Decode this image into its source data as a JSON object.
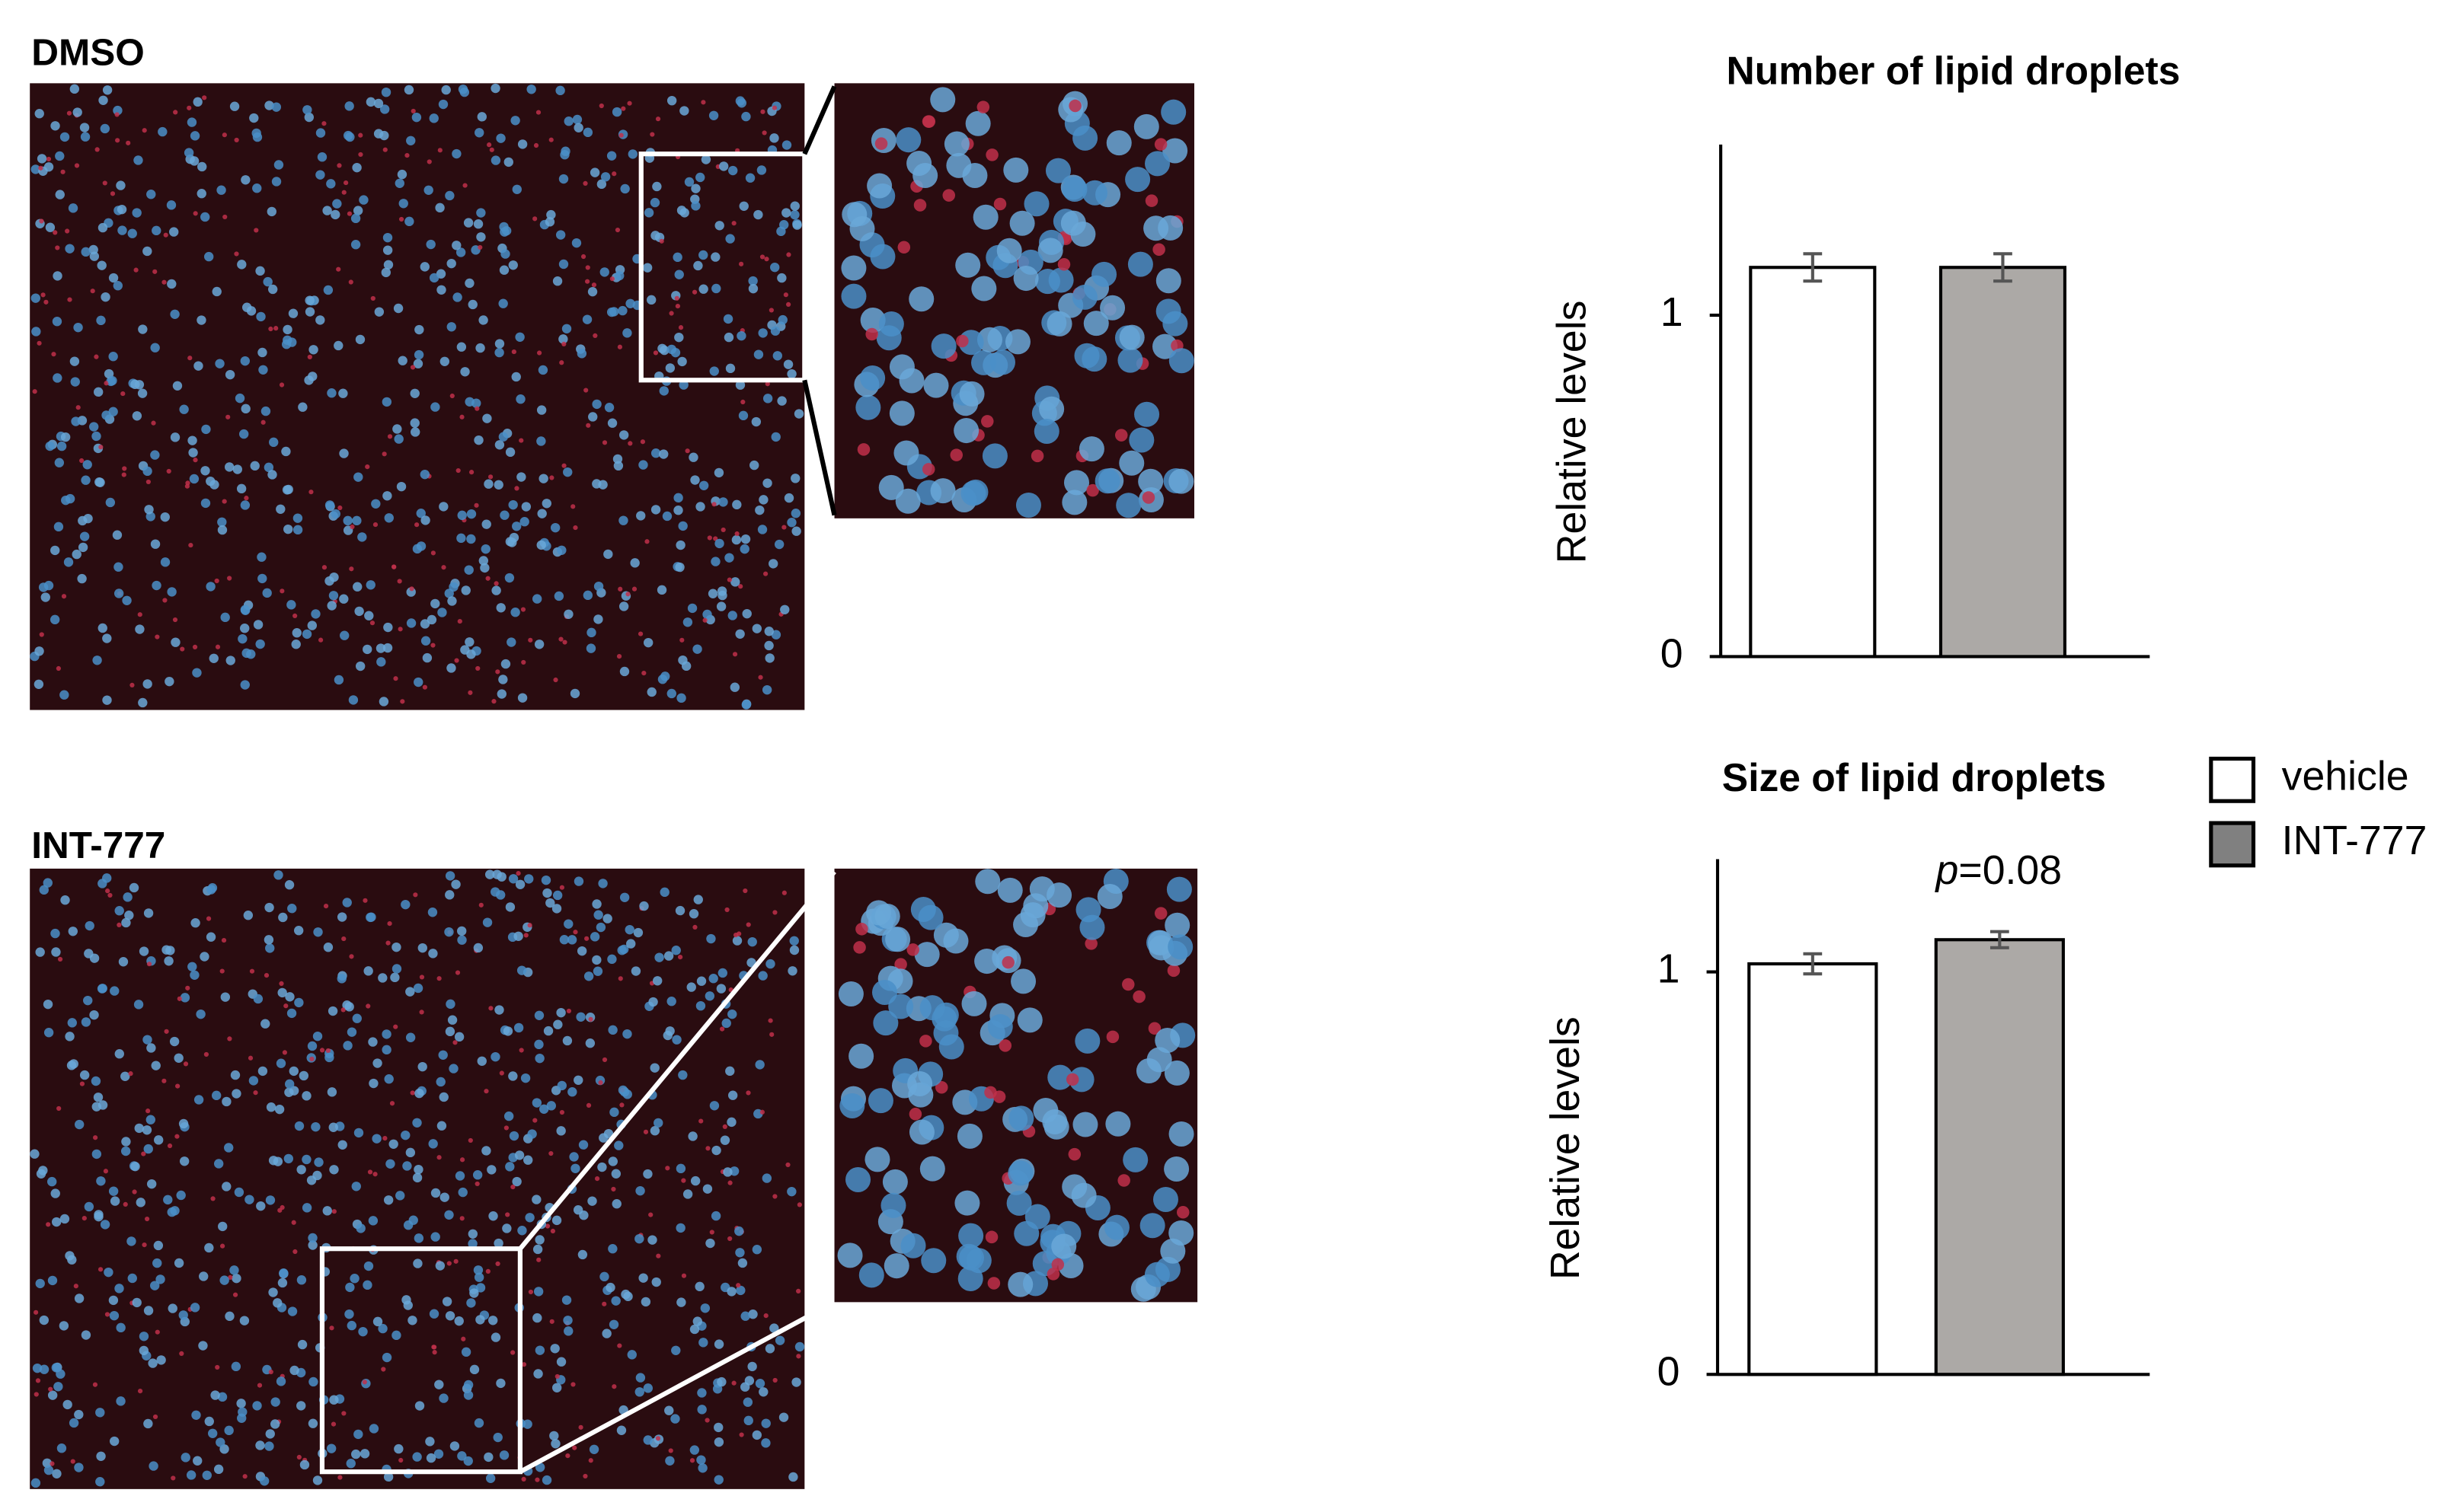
{
  "images": [
    {
      "label": "DMSO"
    },
    {
      "label": "INT-777"
    }
  ],
  "legend": [
    {
      "name": "vehicle",
      "color": "#ffffff"
    },
    {
      "name": "INT-777",
      "color": "#808080"
    }
  ],
  "chart_data": [
    {
      "type": "bar",
      "title": "Number of lipid droplets",
      "y_label": "Relative levels",
      "values": [
        1.14,
        1.14
      ],
      "errors": [
        0.04,
        0.04
      ],
      "colors": [
        "#ffffff",
        "#aca9a6"
      ],
      "ylim": [
        0,
        1.5
      ],
      "yticks": [
        0,
        1
      ]
    },
    {
      "type": "bar",
      "title": "Size of lipid droplets",
      "y_label": "Relative levels",
      "values": [
        1.02,
        1.08
      ],
      "errors": [
        0.025,
        0.02
      ],
      "colors": [
        "#ffffff",
        "#aca9a6"
      ],
      "ylim": [
        0,
        1.28
      ],
      "yticks": [
        0,
        1
      ],
      "annotation": {
        "italic": "p",
        "text": "=0.08"
      }
    }
  ]
}
